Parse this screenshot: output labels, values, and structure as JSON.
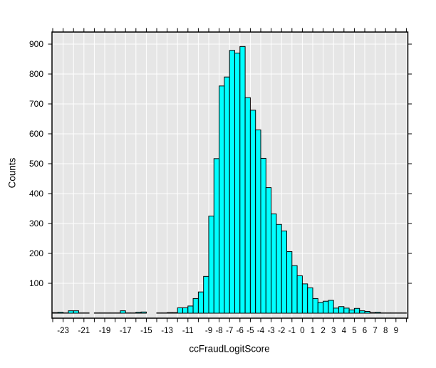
{
  "chart_data": {
    "type": "bar",
    "subtype": "histogram",
    "title": "",
    "xlabel": "ccFraudLogitScore",
    "ylabel": "Counts",
    "bin_start": -24,
    "bin_width": 0.5,
    "counts": [
      2,
      3,
      1,
      8,
      8,
      1,
      1,
      0,
      1,
      1,
      1,
      1,
      1,
      8,
      1,
      1,
      3,
      4,
      0,
      0,
      1,
      1,
      2,
      2,
      18,
      18,
      24,
      49,
      71,
      123,
      325,
      517,
      760,
      790,
      879,
      870,
      892,
      721,
      679,
      613,
      518,
      420,
      332,
      297,
      275,
      206,
      159,
      125,
      98,
      85,
      49,
      36,
      40,
      43,
      17,
      22,
      17,
      11,
      16,
      8,
      6,
      2,
      3,
      1,
      1,
      1,
      1,
      1
    ],
    "x_range": [
      -24,
      10
    ],
    "y_range": [
      0,
      940
    ],
    "x_tick_values": [
      -24,
      -23,
      -22,
      -21,
      -20,
      -19,
      -18,
      -17,
      -16,
      -15,
      -14,
      -13,
      -12,
      -11,
      -10,
      -9,
      -8,
      -7,
      -6,
      -5,
      -4,
      -3,
      -2,
      -1,
      0,
      1,
      2,
      3,
      4,
      5,
      6,
      7,
      8,
      9,
      10
    ],
    "x_tick_labels": [
      "-23",
      "-21",
      "-19",
      "-17",
      "-15",
      "-13",
      "-11",
      "-9",
      "-8",
      "-7",
      "-6",
      "-5",
      "-4",
      "-3",
      "-2",
      "-1",
      "0",
      "1",
      "2",
      "3",
      "4",
      "5",
      "6",
      "7",
      "8",
      "9"
    ],
    "y_tick_labels": [
      "100",
      "200",
      "300",
      "400",
      "500",
      "600",
      "700",
      "800",
      "900"
    ],
    "grid": "on",
    "legend": "none",
    "colors": {
      "bar_fill": "#00FFFF",
      "bar_stroke": "#000000",
      "plot_background": "#E6E6E6",
      "gridline": "#FFFFFF",
      "axis": "#000000",
      "tick_text": "#000000",
      "figure_background": "#FFFFFF"
    }
  }
}
